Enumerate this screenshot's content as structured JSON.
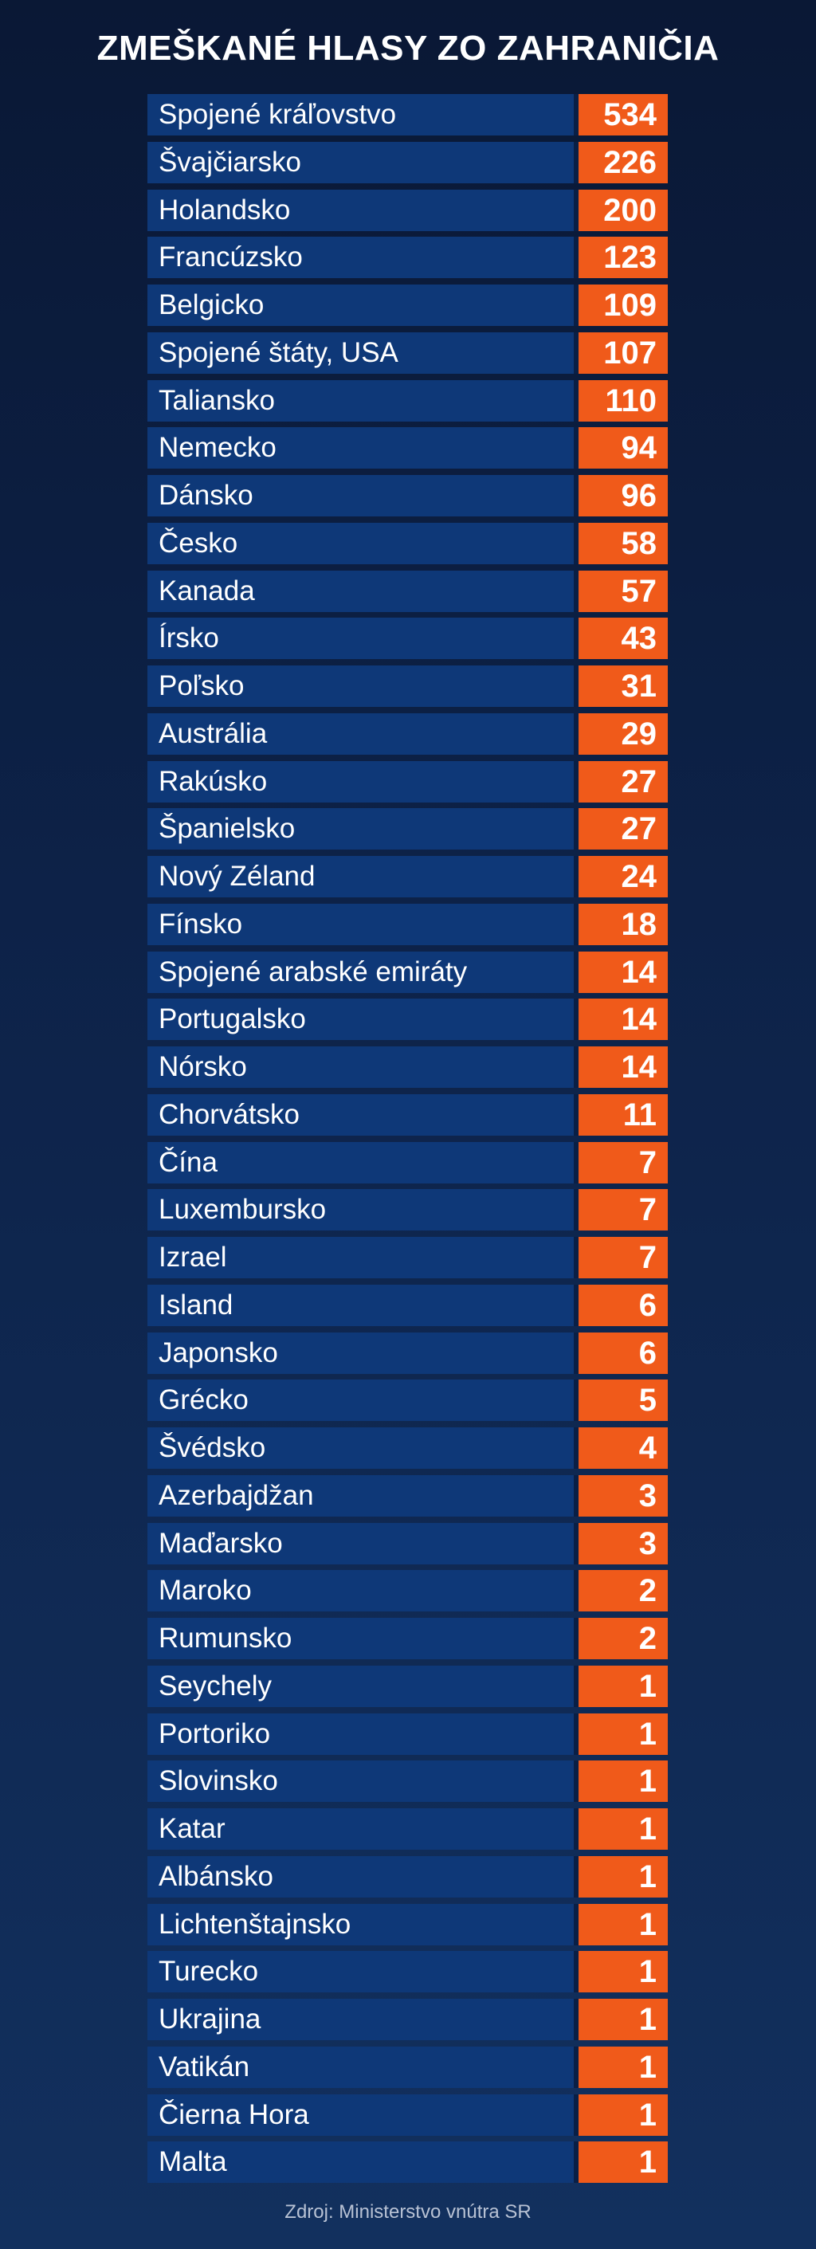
{
  "title": "ZMEŠKANÉ HLASY ZO ZAHRANIČIA",
  "source": "Zdroj: Ministerstvo vnútra SR",
  "colors": {
    "name_bg": "#0e3878",
    "value_bg": "#f05a1a",
    "background": "#0d2248"
  },
  "chart_data": {
    "type": "table",
    "title": "ZMEŠKANÉ HLASY ZO ZAHRANIČIA",
    "categories": [
      "Spojené kráľovstvo",
      "Švajčiarsko",
      "Holandsko",
      "Francúzsko",
      "Belgicko",
      "Spojené štáty, USA",
      "Taliansko",
      "Nemecko",
      "Dánsko",
      "Česko",
      "Kanada",
      "Írsko",
      "Poľsko",
      "Austrália",
      "Rakúsko",
      "Španielsko",
      "Nový Zéland",
      "Fínsko",
      "Spojené arabské emiráty",
      "Portugalsko",
      "Nórsko",
      "Chorvátsko",
      "Čína",
      "Luxembursko",
      "Izrael",
      "Island",
      "Japonsko",
      "Grécko",
      "Švédsko",
      "Azerbajdžan",
      "Maďarsko",
      "Maroko",
      "Rumunsko",
      "Seychely",
      "Portoriko",
      "Slovinsko",
      "Katar",
      "Albánsko",
      "Lichtenštajnsko",
      "Turecko",
      "Ukrajina",
      "Vatikán",
      "Čierna Hora",
      "Malta"
    ],
    "values": [
      534,
      226,
      200,
      123,
      109,
      107,
      110,
      94,
      96,
      58,
      57,
      43,
      31,
      29,
      27,
      27,
      24,
      18,
      14,
      14,
      14,
      11,
      7,
      7,
      7,
      6,
      6,
      5,
      4,
      3,
      3,
      2,
      2,
      1,
      1,
      1,
      1,
      1,
      1,
      1,
      1,
      1,
      1,
      1
    ]
  }
}
